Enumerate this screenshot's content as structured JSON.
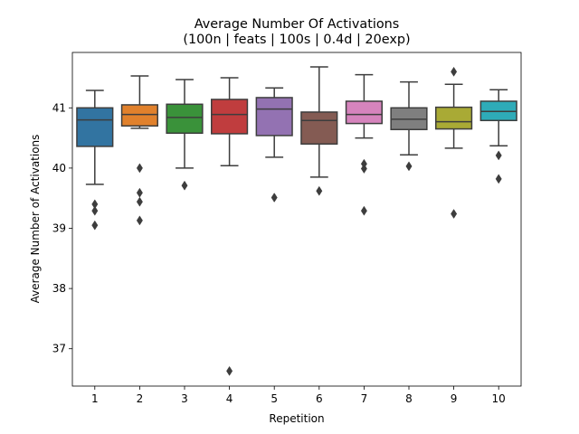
{
  "chart_data": {
    "type": "box",
    "title": "Average Number Of Activations",
    "subtitle": "(100n | feats | 100s | 0.4d | 20exp)",
    "xlabel": "Repetition",
    "ylabel": "Average Number of Activations",
    "ylim": [
      36.38,
      41.92
    ],
    "yticks": [
      37,
      38,
      39,
      40,
      41
    ],
    "grid": false,
    "categories": [
      "1",
      "2",
      "3",
      "4",
      "5",
      "6",
      "7",
      "8",
      "9",
      "10"
    ],
    "series": [
      {
        "category": "1",
        "color": "#3274a1",
        "whisker_low": 39.73,
        "q1": 40.36,
        "median": 40.8,
        "q3": 41.0,
        "whisker_high": 41.29,
        "outliers": [
          39.4,
          39.29,
          39.05
        ]
      },
      {
        "category": "2",
        "color": "#e1812c",
        "whisker_low": 40.66,
        "q1": 40.7,
        "median": 40.89,
        "q3": 41.05,
        "whisker_high": 41.53,
        "outliers": [
          40.0,
          39.59,
          39.44,
          39.13
        ]
      },
      {
        "category": "3",
        "color": "#3a923a",
        "whisker_low": 40.0,
        "q1": 40.58,
        "median": 40.84,
        "q3": 41.06,
        "whisker_high": 41.47,
        "outliers": [
          39.71
        ]
      },
      {
        "category": "4",
        "color": "#c03d3e",
        "whisker_low": 40.04,
        "q1": 40.57,
        "median": 40.89,
        "q3": 41.14,
        "whisker_high": 41.5,
        "outliers": [
          36.63
        ]
      },
      {
        "category": "5",
        "color": "#9372b2",
        "whisker_low": 40.18,
        "q1": 40.54,
        "median": 40.98,
        "q3": 41.17,
        "whisker_high": 41.33,
        "outliers": [
          39.51
        ]
      },
      {
        "category": "6",
        "color": "#845b53",
        "whisker_low": 39.85,
        "q1": 40.4,
        "median": 40.79,
        "q3": 40.93,
        "whisker_high": 41.68,
        "outliers": [
          39.62
        ]
      },
      {
        "category": "7",
        "color": "#d684bd",
        "whisker_low": 40.5,
        "q1": 40.74,
        "median": 40.89,
        "q3": 41.11,
        "whisker_high": 41.55,
        "outliers": [
          40.07,
          39.99,
          39.29
        ]
      },
      {
        "category": "8",
        "color": "#7f7f7f",
        "whisker_low": 40.22,
        "q1": 40.64,
        "median": 40.81,
        "q3": 41.0,
        "whisker_high": 41.43,
        "outliers": [
          40.03
        ]
      },
      {
        "category": "9",
        "color": "#a9aa35",
        "whisker_low": 40.33,
        "q1": 40.65,
        "median": 40.77,
        "q3": 41.01,
        "whisker_high": 41.39,
        "outliers": [
          41.6,
          39.24
        ]
      },
      {
        "category": "10",
        "color": "#2eabb8",
        "whisker_low": 40.37,
        "q1": 40.79,
        "median": 40.94,
        "q3": 41.11,
        "whisker_high": 41.3,
        "outliers": [
          40.21,
          39.82
        ]
      }
    ]
  }
}
